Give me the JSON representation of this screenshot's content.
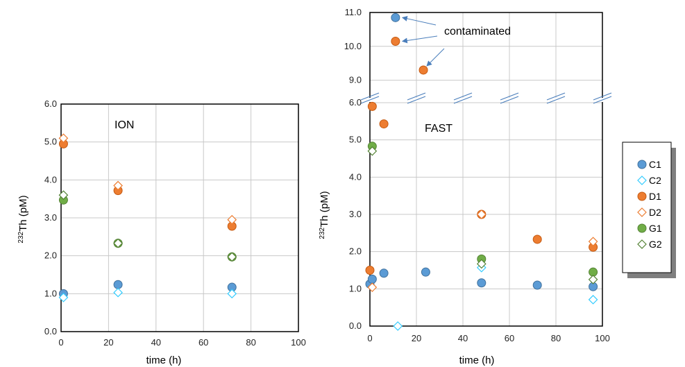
{
  "chart_data": [
    {
      "type": "scatter",
      "title": "",
      "annotation": "ION",
      "xlabel": "time (h)",
      "ylabel_sup": "232",
      "ylabel_main": "Th (pM)",
      "xlim": [
        0,
        100
      ],
      "ylim": [
        0,
        6
      ],
      "xticks": [
        "0",
        "20",
        "40",
        "60",
        "80",
        "100"
      ],
      "yticks": [
        "0.0",
        "1.0",
        "2.0",
        "3.0",
        "4.0",
        "5.0",
        "6.0"
      ],
      "grid": true,
      "series": [
        {
          "name": "C1",
          "points": [
            [
              1,
              1.0
            ],
            [
              24,
              1.24
            ],
            [
              72,
              1.17
            ]
          ]
        },
        {
          "name": "C2",
          "points": [
            [
              1,
              0.9
            ],
            [
              24,
              1.03
            ],
            [
              72,
              1.0
            ]
          ]
        },
        {
          "name": "D1",
          "points": [
            [
              1,
              4.95
            ],
            [
              24,
              3.72
            ],
            [
              72,
              2.78
            ]
          ]
        },
        {
          "name": "D2",
          "points": [
            [
              1,
              5.1
            ],
            [
              24,
              3.85
            ],
            [
              72,
              2.95
            ]
          ]
        },
        {
          "name": "G1",
          "points": [
            [
              1,
              3.47
            ],
            [
              24,
              2.33
            ],
            [
              72,
              1.97
            ]
          ]
        },
        {
          "name": "G2",
          "points": [
            [
              1,
              3.6
            ],
            [
              24,
              2.33
            ],
            [
              72,
              1.97
            ]
          ]
        }
      ]
    },
    {
      "type": "scatter",
      "title": "",
      "annotation": "FAST",
      "xlabel": "time (h)",
      "ylabel_sup": "232",
      "ylabel_main": "Th (pM)",
      "xlim": [
        0,
        100
      ],
      "ylim_lower": [
        0,
        6
      ],
      "ylim_upper": [
        8.5,
        11
      ],
      "xticks": [
        "0",
        "20",
        "40",
        "60",
        "80",
        "100"
      ],
      "yticks_lower": [
        "0.0",
        "1.0",
        "2.0",
        "3.0",
        "4.0",
        "5.0",
        "6.0"
      ],
      "yticks_upper": [
        "9.0",
        "10.0",
        "11.0"
      ],
      "grid": true,
      "axis_break": true,
      "callout": "contaminated",
      "series": [
        {
          "name": "C1",
          "points": [
            [
              0,
              1.13
            ],
            [
              1,
              1.26
            ],
            [
              6,
              1.42
            ],
            [
              11,
              10.85
            ],
            [
              24,
              1.45
            ],
            [
              48,
              1.16
            ],
            [
              72,
              1.1
            ],
            [
              96,
              1.06
            ]
          ]
        },
        {
          "name": "C2",
          "points": [
            [
              12,
              0.0
            ],
            [
              48,
              1.57
            ],
            [
              96,
              0.71
            ]
          ]
        },
        {
          "name": "D1",
          "points": [
            [
              0,
              1.5
            ],
            [
              1,
              5.9
            ],
            [
              6,
              5.43
            ],
            [
              11,
              10.15
            ],
            [
              23,
              9.3
            ],
            [
              48,
              3.0
            ],
            [
              72,
              2.33
            ],
            [
              96,
              2.12
            ]
          ]
        },
        {
          "name": "D2",
          "points": [
            [
              1,
              1.04
            ],
            [
              48,
              3.0
            ],
            [
              96,
              2.27
            ]
          ]
        },
        {
          "name": "G1",
          "points": [
            [
              1,
              4.83
            ],
            [
              48,
              1.8
            ],
            [
              96,
              1.45
            ]
          ]
        },
        {
          "name": "G2",
          "points": [
            [
              1,
              4.7
            ],
            [
              48,
              1.67
            ],
            [
              96,
              1.25
            ]
          ]
        }
      ]
    }
  ],
  "legend": {
    "placement": "right",
    "entries": [
      "C1",
      "C2",
      "D1",
      "D2",
      "G1",
      "G2"
    ]
  },
  "styles": {
    "C1": {
      "marker": "circle",
      "fill": "#5b9bd5",
      "stroke": "#41719c"
    },
    "C2": {
      "marker": "diamond",
      "fill": "#ffffff",
      "stroke": "#33ccff"
    },
    "D1": {
      "marker": "circle",
      "fill": "#ed7d31",
      "stroke": "#c55a11"
    },
    "D2": {
      "marker": "diamond",
      "fill": "#ffffff",
      "stroke": "#ed7d31"
    },
    "G1": {
      "marker": "circle",
      "fill": "#70ad47",
      "stroke": "#548235"
    },
    "G2": {
      "marker": "diamond",
      "fill": "#ffffff",
      "stroke": "#548235"
    }
  },
  "colors": {
    "grid": "#c8c8c8",
    "axis": "#000000",
    "arrow": "#4a7ebb",
    "break": "#4a7ebb"
  }
}
